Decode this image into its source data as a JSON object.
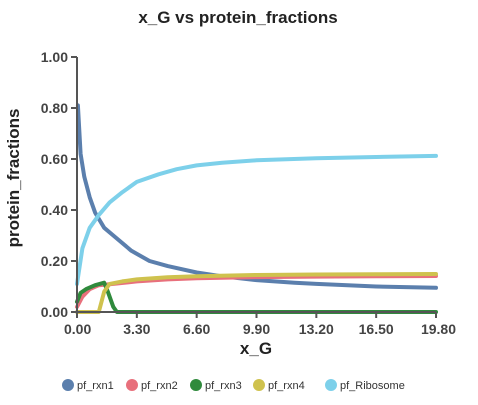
{
  "chart_data": {
    "type": "line",
    "title": "x_G vs protein_fractions",
    "xlabel": "x_G",
    "ylabel": "protein_fractions",
    "xlim": [
      0,
      19.8
    ],
    "ylim": [
      0,
      1.0
    ],
    "x_ticks": [
      "0.00",
      "3.30",
      "6.60",
      "9.90",
      "13.20",
      "16.50",
      "19.80"
    ],
    "y_ticks": [
      "0.00",
      "0.20",
      "0.40",
      "0.60",
      "0.80",
      "1.00"
    ],
    "x_tick_values": [
      0,
      3.3,
      6.6,
      9.9,
      13.2,
      16.5,
      19.8
    ],
    "y_tick_values": [
      0,
      0.2,
      0.4,
      0.6,
      0.8,
      1.0
    ],
    "grid": false,
    "legend_position": "bottom",
    "series": [
      {
        "name": "pf_rxn1",
        "color": "#5b7fad",
        "points": [
          [
            0.05,
            0.81
          ],
          [
            0.2,
            0.62
          ],
          [
            0.4,
            0.53
          ],
          [
            0.7,
            0.45
          ],
          [
            1.0,
            0.39
          ],
          [
            1.5,
            0.33
          ],
          [
            2.0,
            0.3
          ],
          [
            3.0,
            0.24
          ],
          [
            4.0,
            0.2
          ],
          [
            5.0,
            0.18
          ],
          [
            6.6,
            0.155
          ],
          [
            8.0,
            0.14
          ],
          [
            9.9,
            0.125
          ],
          [
            12.0,
            0.115
          ],
          [
            13.2,
            0.11
          ],
          [
            16.5,
            0.1
          ],
          [
            19.8,
            0.095
          ]
        ]
      },
      {
        "name": "pf_rxn2",
        "color": "#e8707c",
        "points": [
          [
            0.0,
            0.02
          ],
          [
            0.3,
            0.06
          ],
          [
            0.7,
            0.09
          ],
          [
            1.2,
            0.105
          ],
          [
            2.0,
            0.11
          ],
          [
            3.3,
            0.12
          ],
          [
            5.0,
            0.128
          ],
          [
            6.6,
            0.132
          ],
          [
            9.9,
            0.137
          ],
          [
            13.2,
            0.139
          ],
          [
            16.5,
            0.14
          ],
          [
            19.8,
            0.141
          ]
        ]
      },
      {
        "name": "pf_rxn3",
        "color": "#2f8a3c",
        "points": [
          [
            0.0,
            0.04
          ],
          [
            0.2,
            0.075
          ],
          [
            0.5,
            0.09
          ],
          [
            1.0,
            0.105
          ],
          [
            1.5,
            0.115
          ],
          [
            1.7,
            0.08
          ],
          [
            2.0,
            0.02
          ],
          [
            2.2,
            0.0
          ],
          [
            3.3,
            0.0
          ],
          [
            19.8,
            0.0
          ]
        ]
      },
      {
        "name": "pf_rxn4",
        "color": "#cfc24e",
        "points": [
          [
            0.0,
            0.0
          ],
          [
            1.2,
            0.0
          ],
          [
            1.5,
            0.08
          ],
          [
            1.8,
            0.11
          ],
          [
            2.5,
            0.12
          ],
          [
            3.3,
            0.128
          ],
          [
            5.0,
            0.136
          ],
          [
            6.6,
            0.14
          ],
          [
            9.9,
            0.145
          ],
          [
            13.2,
            0.147
          ],
          [
            16.5,
            0.148
          ],
          [
            19.8,
            0.149
          ]
        ]
      },
      {
        "name": "pf_Ribosome",
        "color": "#7dd0ea",
        "points": [
          [
            0.0,
            0.11
          ],
          [
            0.3,
            0.25
          ],
          [
            0.7,
            0.33
          ],
          [
            1.2,
            0.38
          ],
          [
            1.8,
            0.43
          ],
          [
            2.5,
            0.47
          ],
          [
            3.3,
            0.51
          ],
          [
            4.5,
            0.54
          ],
          [
            5.5,
            0.56
          ],
          [
            6.6,
            0.575
          ],
          [
            8.0,
            0.585
          ],
          [
            9.9,
            0.595
          ],
          [
            13.2,
            0.603
          ],
          [
            16.5,
            0.608
          ],
          [
            19.8,
            0.612
          ]
        ]
      }
    ]
  }
}
